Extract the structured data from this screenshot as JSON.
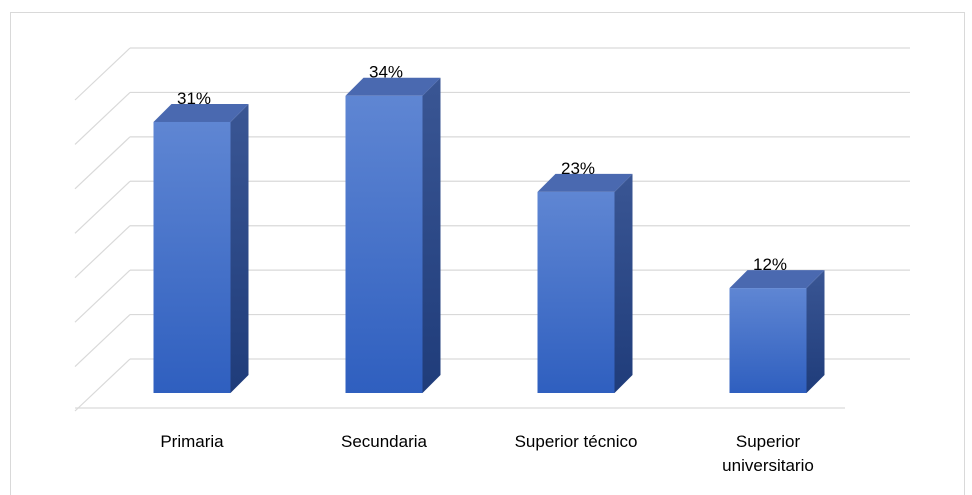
{
  "chart_data": {
    "type": "bar",
    "categories": [
      "Primaria",
      "Secundaria",
      "Superior técnico",
      "Superior universitario"
    ],
    "values": [
      31,
      34,
      23,
      12
    ],
    "value_labels": [
      "31%",
      "34%",
      "23%",
      "12%"
    ],
    "color": "#4472c4",
    "ylim": [
      0,
      35
    ],
    "yticks": [
      0,
      5,
      10,
      15,
      20,
      25,
      30,
      35
    ],
    "grid": true
  }
}
